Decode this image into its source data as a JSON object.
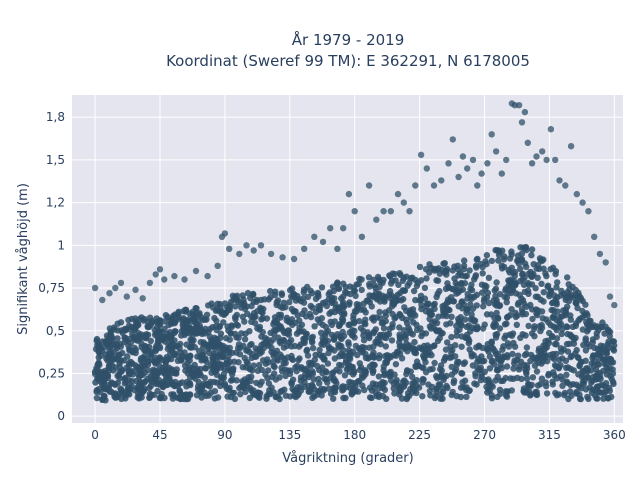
{
  "chart_data": {
    "type": "scatter",
    "title_line1": "År 1979 - 2019",
    "title_line2": "Koordinat (Sweref 99 TM): E 362291, N 6178005",
    "xlabel": "Vågriktning (grader)",
    "ylabel": "Signifikant våghöjd (m)",
    "xlim": [
      -16,
      366
    ],
    "ylim": [
      -0.04,
      1.88
    ],
    "x_ticks": [
      0,
      45,
      90,
      135,
      180,
      225,
      270,
      315,
      360
    ],
    "x_tick_labels": [
      "0",
      "45",
      "90",
      "135",
      "180",
      "225",
      "270",
      "315",
      "360"
    ],
    "y_ticks": [
      0,
      0.25,
      0.5,
      0.75,
      1,
      1.25,
      1.5,
      1.75
    ],
    "y_tick_labels": [
      "0",
      "0,25",
      "0,5",
      "0,75",
      "1",
      "1,2",
      "1,5",
      "1,8"
    ],
    "grid": true,
    "marker_color": "#2f5068",
    "background_color": "#e5e5ef",
    "envelope": {
      "x": [
        0,
        15,
        30,
        45,
        60,
        75,
        90,
        105,
        120,
        135,
        150,
        165,
        180,
        195,
        210,
        225,
        240,
        255,
        270,
        285,
        300,
        315,
        330,
        345,
        360
      ],
      "dense_top": [
        0.45,
        0.55,
        0.58,
        0.6,
        0.62,
        0.64,
        0.7,
        0.72,
        0.74,
        0.75,
        0.76,
        0.78,
        0.8,
        0.82,
        0.85,
        0.88,
        0.9,
        0.92,
        0.95,
        1.0,
        1.0,
        0.9,
        0.8,
        0.6,
        0.5
      ],
      "dense_bottom": [
        0.08,
        0.1,
        0.1,
        0.1,
        0.1,
        0.1,
        0.1,
        0.1,
        0.1,
        0.1,
        0.1,
        0.1,
        0.1,
        0.1,
        0.1,
        0.1,
        0.1,
        0.1,
        0.1,
        0.1,
        0.1,
        0.1,
        0.1,
        0.1,
        0.1
      ]
    },
    "points": [
      [
        0,
        0.75
      ],
      [
        5,
        0.68
      ],
      [
        10,
        0.72
      ],
      [
        14,
        0.75
      ],
      [
        18,
        0.78
      ],
      [
        22,
        0.7
      ],
      [
        28,
        0.74
      ],
      [
        33,
        0.69
      ],
      [
        38,
        0.78
      ],
      [
        42,
        0.83
      ],
      [
        45,
        0.86
      ],
      [
        48,
        0.8
      ],
      [
        55,
        0.82
      ],
      [
        62,
        0.8
      ],
      [
        70,
        0.85
      ],
      [
        78,
        0.82
      ],
      [
        85,
        0.88
      ],
      [
        88,
        1.05
      ],
      [
        90,
        1.07
      ],
      [
        93,
        0.98
      ],
      [
        100,
        0.95
      ],
      [
        105,
        1.0
      ],
      [
        110,
        0.97
      ],
      [
        115,
        1.0
      ],
      [
        122,
        0.95
      ],
      [
        130,
        0.93
      ],
      [
        138,
        0.92
      ],
      [
        145,
        0.98
      ],
      [
        152,
        1.05
      ],
      [
        158,
        1.02
      ],
      [
        163,
        1.1
      ],
      [
        168,
        0.98
      ],
      [
        172,
        1.1
      ],
      [
        176,
        1.3
      ],
      [
        180,
        1.2
      ],
      [
        185,
        1.05
      ],
      [
        190,
        1.35
      ],
      [
        195,
        1.15
      ],
      [
        200,
        1.2
      ],
      [
        205,
        1.2
      ],
      [
        210,
        1.3
      ],
      [
        214,
        1.25
      ],
      [
        218,
        1.2
      ],
      [
        222,
        1.35
      ],
      [
        226,
        1.53
      ],
      [
        230,
        1.45
      ],
      [
        235,
        1.35
      ],
      [
        240,
        1.38
      ],
      [
        245,
        1.48
      ],
      [
        248,
        1.62
      ],
      [
        252,
        1.4
      ],
      [
        255,
        1.52
      ],
      [
        258,
        1.45
      ],
      [
        262,
        1.5
      ],
      [
        265,
        1.35
      ],
      [
        268,
        1.42
      ],
      [
        272,
        1.48
      ],
      [
        275,
        1.65
      ],
      [
        278,
        1.55
      ],
      [
        282,
        1.42
      ],
      [
        285,
        1.5
      ],
      [
        289,
        1.83
      ],
      [
        291,
        1.82
      ],
      [
        294,
        1.82
      ],
      [
        296,
        1.72
      ],
      [
        298,
        1.78
      ],
      [
        300,
        1.6
      ],
      [
        303,
        1.48
      ],
      [
        306,
        1.52
      ],
      [
        310,
        1.55
      ],
      [
        313,
        1.5
      ],
      [
        316,
        1.68
      ],
      [
        319,
        1.5
      ],
      [
        322,
        1.38
      ],
      [
        326,
        1.35
      ],
      [
        330,
        1.58
      ],
      [
        334,
        1.3
      ],
      [
        338,
        1.25
      ],
      [
        342,
        1.2
      ],
      [
        346,
        1.05
      ],
      [
        350,
        0.95
      ],
      [
        354,
        0.9
      ],
      [
        357,
        0.7
      ],
      [
        360,
        0.65
      ]
    ]
  }
}
